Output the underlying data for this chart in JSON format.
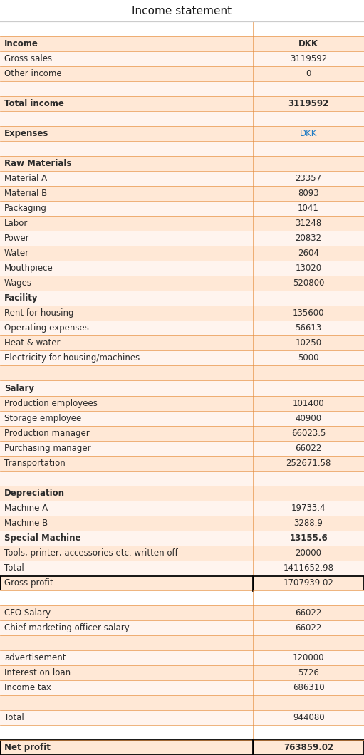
{
  "title": "Income statement",
  "bg_color": "#FFFFFF",
  "orange_line": "#E8954A",
  "gray_line": "#CCCCCC",
  "normal_color": "#2C2C2C",
  "dkk_color": "#1E7BC4",
  "col_split": 0.695,
  "rows": [
    {
      "label": "",
      "value": "",
      "style": "blank_white",
      "bg": "#FFFFFF"
    },
    {
      "label": "Income",
      "value": "DKK",
      "style": "header_bold",
      "bg": "#FFE8D6"
    },
    {
      "label": "Gross sales",
      "value": "3119592",
      "style": "normal",
      "bg": "#FFF4EE"
    },
    {
      "label": "Other income",
      "value": "0",
      "style": "normal",
      "bg": "#FFE8D6"
    },
    {
      "label": "",
      "value": "",
      "style": "blank",
      "bg": "#FFF4EE"
    },
    {
      "label": "Total income",
      "value": "3119592",
      "style": "bold",
      "bg": "#FFE8D6"
    },
    {
      "label": "",
      "value": "",
      "style": "blank",
      "bg": "#FFF4EE"
    },
    {
      "label": "Expenses",
      "value": "DKK",
      "style": "header_bold_dkk",
      "bg": "#FFE8D6"
    },
    {
      "label": "",
      "value": "",
      "style": "blank",
      "bg": "#FFF4EE"
    },
    {
      "label": "Raw Materials",
      "value": "",
      "style": "section_bold",
      "bg": "#FFE8D6"
    },
    {
      "label": "Material A",
      "value": "23357",
      "style": "normal",
      "bg": "#FFF4EE"
    },
    {
      "label": "Material B",
      "value": "8093",
      "style": "normal",
      "bg": "#FFE8D6"
    },
    {
      "label": "Packaging",
      "value": "1041",
      "style": "normal",
      "bg": "#FFF4EE"
    },
    {
      "label": "Labor",
      "value": "31248",
      "style": "normal",
      "bg": "#FFE8D6"
    },
    {
      "label": "Power",
      "value": "20832",
      "style": "normal",
      "bg": "#FFF4EE"
    },
    {
      "label": "Water",
      "value": "2604",
      "style": "normal",
      "bg": "#FFE8D6"
    },
    {
      "label": "Mouthpiece",
      "value": "13020",
      "style": "normal",
      "bg": "#FFF4EE"
    },
    {
      "label": "Wages",
      "value": "520800",
      "style": "normal",
      "bg": "#FFE8D6"
    },
    {
      "label": "Facility",
      "value": "",
      "style": "section_bold",
      "bg": "#FFF4EE"
    },
    {
      "label": "Rent for housing",
      "value": "135600",
      "style": "normal",
      "bg": "#FFE8D6"
    },
    {
      "label": "Operating expenses",
      "value": "56613",
      "style": "normal",
      "bg": "#FFF4EE"
    },
    {
      "label": "Heat & water",
      "value": "10250",
      "style": "normal",
      "bg": "#FFE8D6"
    },
    {
      "label": "Electricity for housing/machines",
      "value": "5000",
      "style": "normal",
      "bg": "#FFF4EE"
    },
    {
      "label": "",
      "value": "",
      "style": "blank",
      "bg": "#FFE8D6"
    },
    {
      "label": "Salary",
      "value": "",
      "style": "section_bold",
      "bg": "#FFF4EE"
    },
    {
      "label": "Production employees",
      "value": "101400",
      "style": "normal",
      "bg": "#FFE8D6"
    },
    {
      "label": "Storage employee",
      "value": "40900",
      "style": "normal",
      "bg": "#FFF4EE"
    },
    {
      "label": "Production manager",
      "value": "66023.5",
      "style": "normal",
      "bg": "#FFE8D6"
    },
    {
      "label": "Purchasing manager",
      "value": "66022",
      "style": "normal",
      "bg": "#FFF4EE"
    },
    {
      "label": "Transportation",
      "value": "252671.58",
      "style": "normal",
      "bg": "#FFE8D6"
    },
    {
      "label": "",
      "value": "",
      "style": "blank",
      "bg": "#FFF4EE"
    },
    {
      "label": "Depreciation",
      "value": "",
      "style": "section_bold",
      "bg": "#FFE8D6"
    },
    {
      "label": "Machine A",
      "value": "19733.4",
      "style": "normal",
      "bg": "#FFF4EE"
    },
    {
      "label": "Machine B",
      "value": "3288.9",
      "style": "normal",
      "bg": "#FFE8D6"
    },
    {
      "label": "Special Machine",
      "value": "13155.6",
      "style": "bold",
      "bg": "#FFF4EE"
    },
    {
      "label": "Tools, printer, accessories etc. written off",
      "value": "20000",
      "style": "normal",
      "bg": "#FFE8D6"
    },
    {
      "label": "Total",
      "value": "1411652.98",
      "style": "normal",
      "bg": "#FFF4EE"
    },
    {
      "label": "Gross profit",
      "value": "1707939.02",
      "style": "gross_profit",
      "bg": "#FFE8D6"
    },
    {
      "label": "",
      "value": "",
      "style": "blank_white",
      "bg": "#FFFFFF"
    },
    {
      "label": "CFO Salary",
      "value": "66022",
      "style": "normal",
      "bg": "#FFE8D6"
    },
    {
      "label": "Chief marketing officer salary",
      "value": "66022",
      "style": "normal",
      "bg": "#FFF4EE"
    },
    {
      "label": "",
      "value": "",
      "style": "blank",
      "bg": "#FFE8D6"
    },
    {
      "label": "advertisement",
      "value": "120000",
      "style": "normal",
      "bg": "#FFF4EE"
    },
    {
      "label": "Interest on loan",
      "value": "5726",
      "style": "normal",
      "bg": "#FFE8D6"
    },
    {
      "label": "Income tax",
      "value": "686310",
      "style": "normal",
      "bg": "#FFF4EE"
    },
    {
      "label": "",
      "value": "",
      "style": "blank",
      "bg": "#FFE8D6"
    },
    {
      "label": "Total",
      "value": "944080",
      "style": "normal",
      "bg": "#FFF4EE"
    },
    {
      "label": "",
      "value": "",
      "style": "blank_white",
      "bg": "#FFFFFF"
    },
    {
      "label": "Net profit",
      "value": "763859.02",
      "style": "net_profit",
      "bg": "#FFE8D6"
    }
  ]
}
